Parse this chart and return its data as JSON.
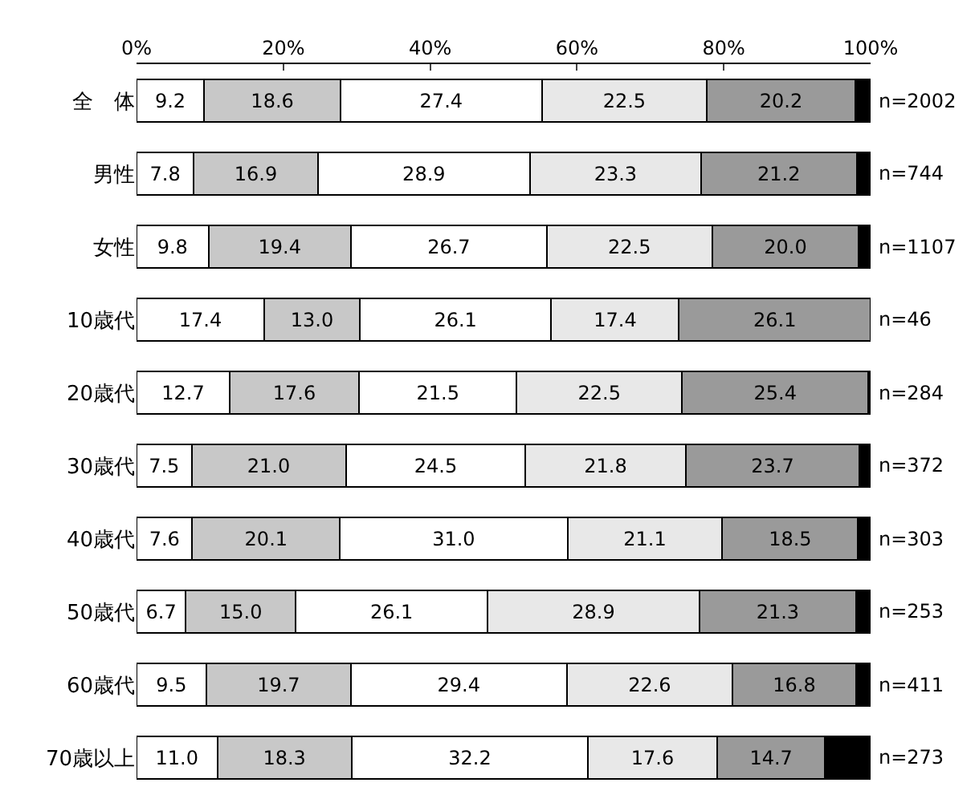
{
  "chart_data": {
    "type": "bar",
    "orientation": "horizontal",
    "stacked": true,
    "categories": [
      "全　体",
      "男性",
      "女性",
      "10歳代",
      "20歳代",
      "30歳代",
      "40歳代",
      "50歳代",
      "60歳代",
      "70歳以上"
    ],
    "series": [
      {
        "color": "#ffffff",
        "values": [
          9.2,
          7.8,
          9.8,
          17.4,
          12.7,
          7.5,
          7.6,
          6.7,
          9.5,
          11.0
        ],
        "value_labels": [
          "9.2",
          "7.8",
          "9.8",
          "17.4",
          "12.7",
          "7.5",
          "7.6",
          "6.7",
          "9.5",
          "11.0"
        ]
      },
      {
        "color": "#c8c8c8",
        "values": [
          18.6,
          16.9,
          19.4,
          13.0,
          17.6,
          21.0,
          20.1,
          15.0,
          19.7,
          18.3
        ],
        "value_labels": [
          "18.6",
          "16.9",
          "19.4",
          "13.0",
          "17.6",
          "21.0",
          "20.1",
          "15.0",
          "19.7",
          "18.3"
        ]
      },
      {
        "color": "#ffffff",
        "values": [
          27.4,
          28.9,
          26.7,
          26.1,
          21.5,
          24.5,
          31.0,
          26.1,
          29.4,
          32.2
        ],
        "value_labels": [
          "27.4",
          "28.9",
          "26.7",
          "26.1",
          "21.5",
          "24.5",
          "31.0",
          "26.1",
          "29.4",
          "32.2"
        ]
      },
      {
        "color": "#e8e8e8",
        "values": [
          22.5,
          23.3,
          22.5,
          17.4,
          22.5,
          21.8,
          21.1,
          28.9,
          22.6,
          17.6
        ],
        "value_labels": [
          "22.5",
          "23.3",
          "22.5",
          "17.4",
          "22.5",
          "21.8",
          "21.1",
          "28.9",
          "22.6",
          "17.6"
        ]
      },
      {
        "color": "#9a9a9a",
        "values": [
          20.2,
          21.2,
          20.0,
          26.1,
          25.4,
          23.7,
          18.5,
          21.3,
          16.8,
          14.7
        ],
        "value_labels": [
          "20.2",
          "21.2",
          "20.0",
          "26.1",
          "25.4",
          "23.7",
          "18.5",
          "21.3",
          "16.8",
          "14.7"
        ]
      },
      {
        "color": "#000000",
        "values": [
          2.1,
          1.9,
          1.6,
          0,
          0.3,
          1.5,
          1.7,
          2.0,
          2.0,
          6.2
        ]
      }
    ],
    "xlim": [
      0,
      100
    ],
    "xticks": [
      {
        "value": 0,
        "label": "0%"
      },
      {
        "value": 20,
        "label": "20%"
      },
      {
        "value": 40,
        "label": "40%"
      },
      {
        "value": 60,
        "label": "60%"
      },
      {
        "value": 80,
        "label": "80%"
      },
      {
        "value": 100,
        "label": "100%"
      }
    ],
    "annotations": [
      "n=2002",
      "n=744",
      "n=1107",
      "n=46",
      "n=284",
      "n=372",
      "n=303",
      "n=253",
      "n=411",
      "n=273"
    ]
  }
}
